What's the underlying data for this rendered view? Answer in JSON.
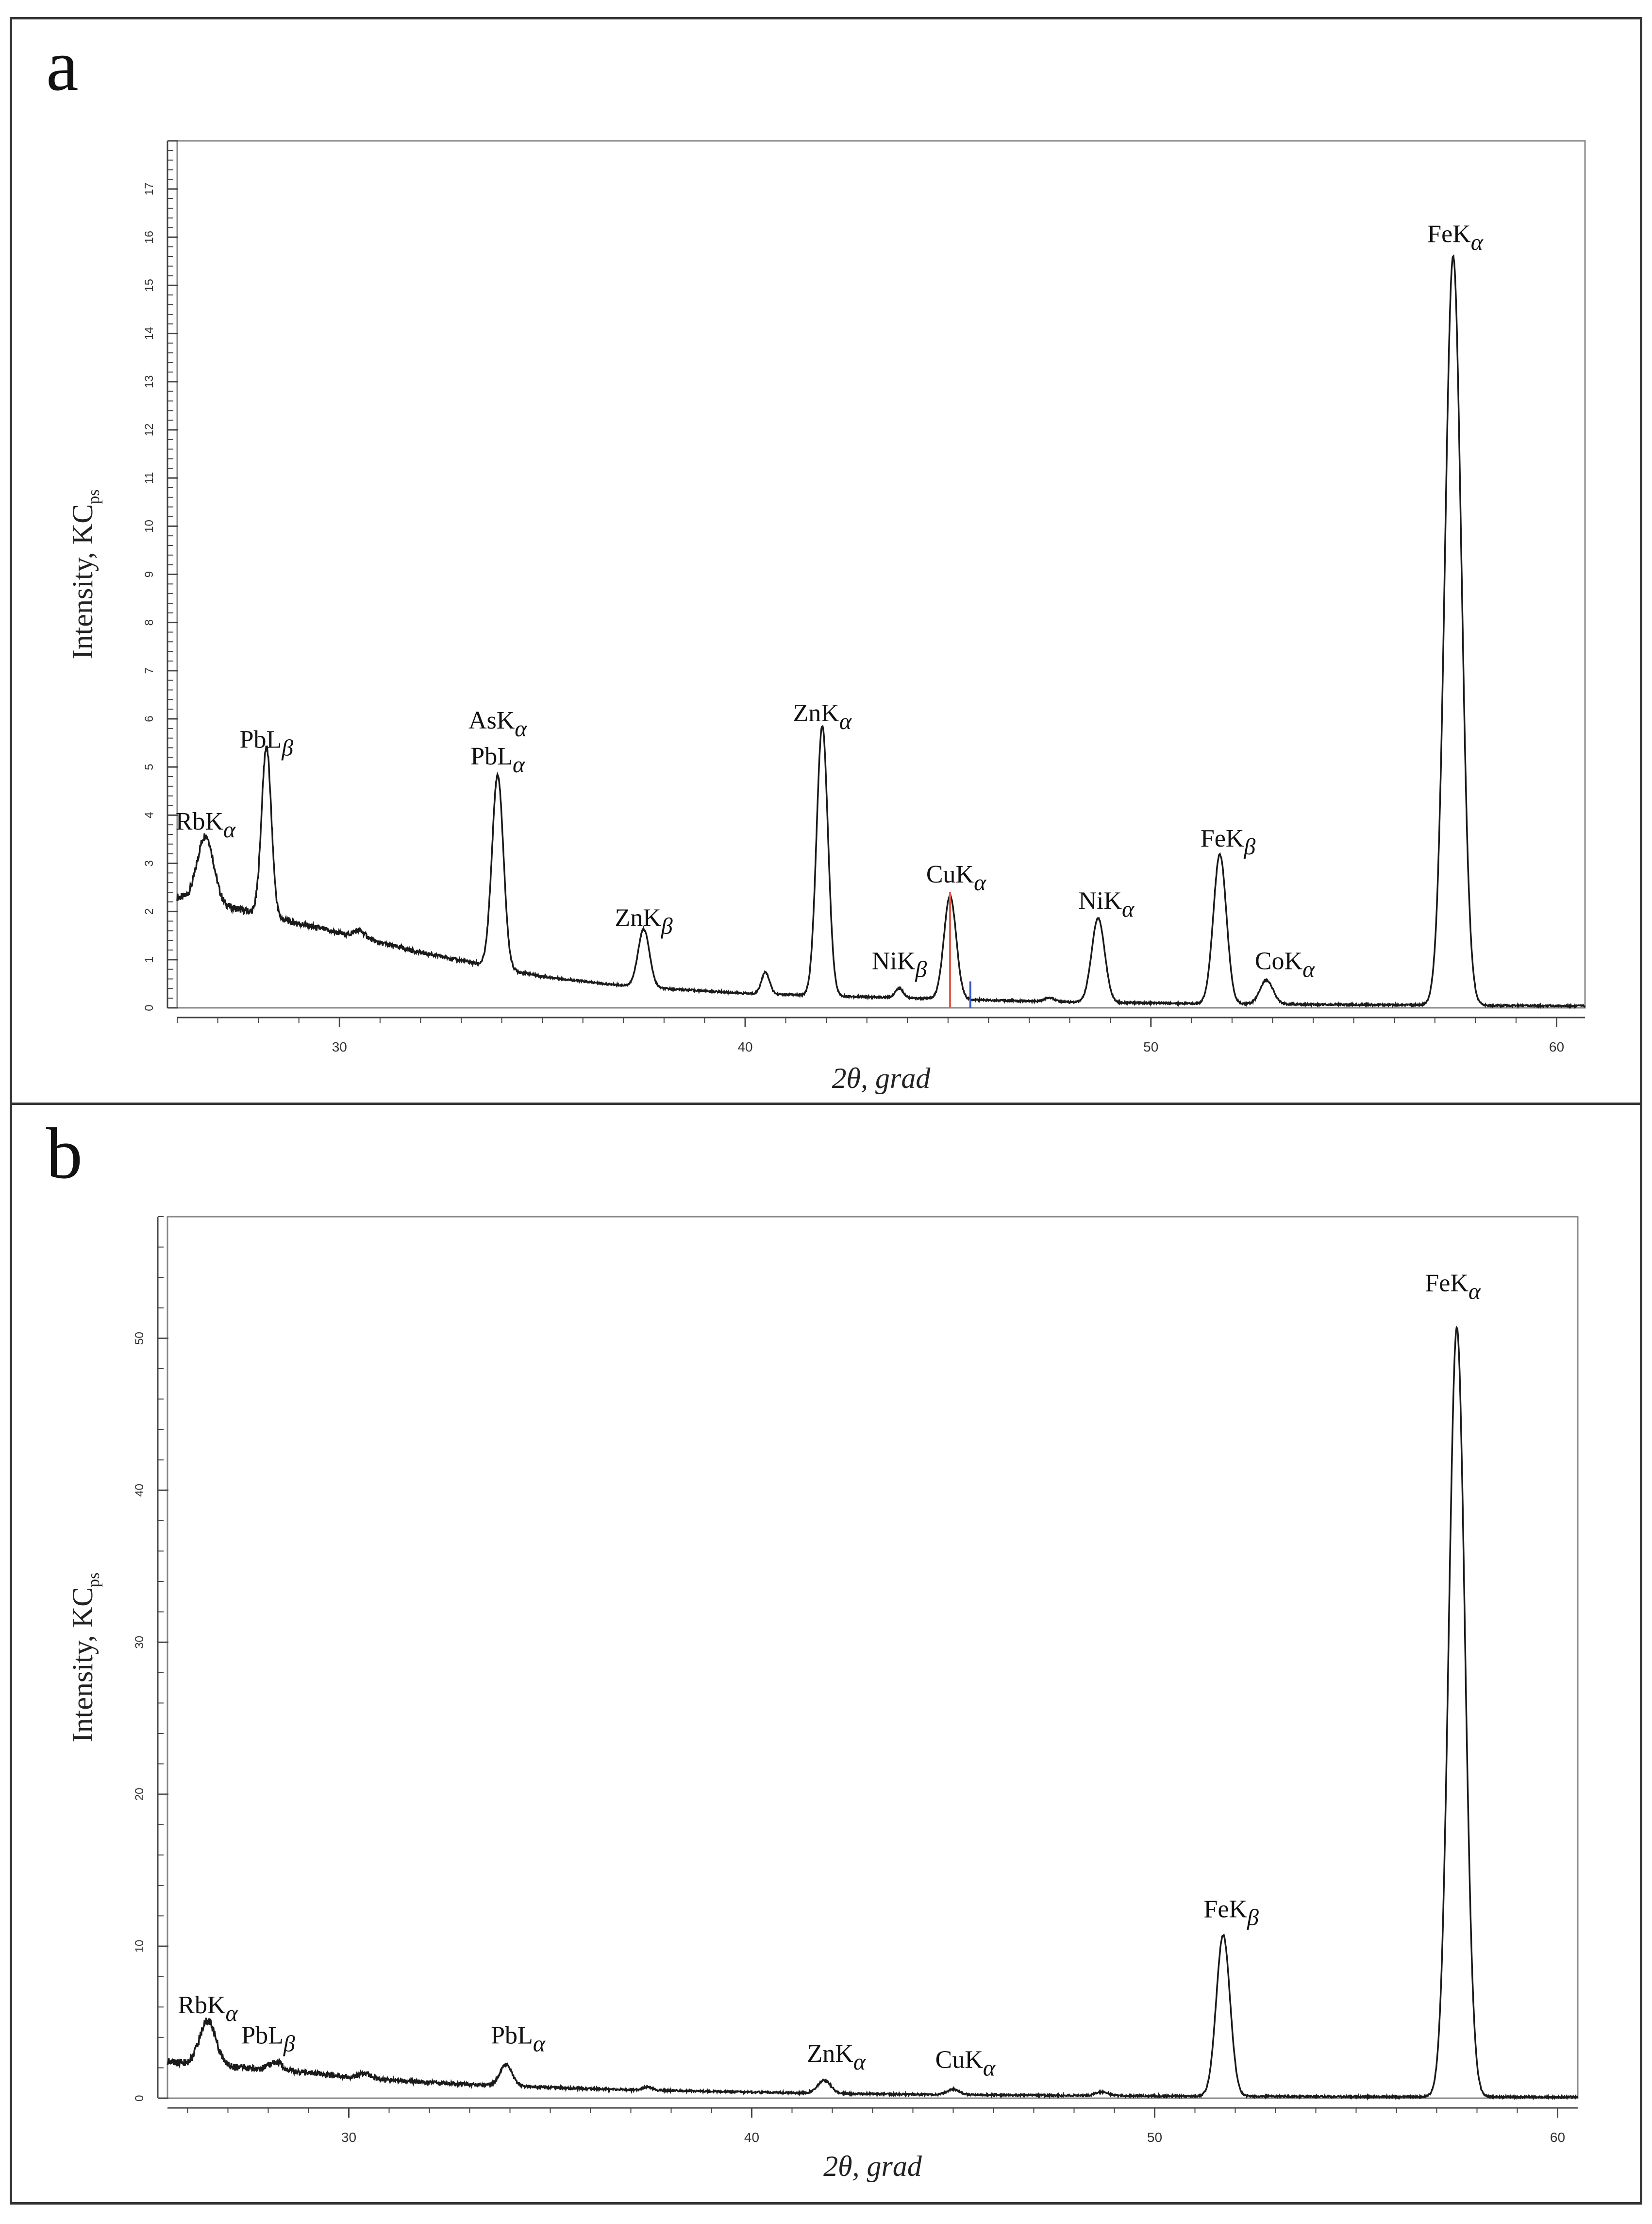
{
  "panels": [
    {
      "letter": "a",
      "chart_data": {
        "type": "line",
        "xlabel": "2θ, grad",
        "ylabel_main": "Intensity, KC",
        "ylabel_sub": "ps",
        "xlim": [
          26,
          60.7
        ],
        "ylim": [
          0,
          18
        ],
        "x_ticks": [
          30,
          40,
          50,
          60
        ],
        "y_ticks": [
          0,
          1,
          2,
          3,
          4,
          5,
          6,
          7,
          8,
          9,
          10,
          11,
          12,
          13,
          14,
          15,
          16,
          17
        ],
        "grid": false,
        "series": [
          {
            "baseline": [
              [
                26,
                2.3
              ],
              [
                27.5,
                2.05
              ],
              [
                29,
                1.75
              ],
              [
                30.5,
                1.45
              ],
              [
                32,
                1.15
              ],
              [
                33.5,
                0.9
              ],
              [
                35,
                0.65
              ],
              [
                36.5,
                0.5
              ],
              [
                38,
                0.4
              ],
              [
                40,
                0.3
              ],
              [
                42,
                0.25
              ],
              [
                45,
                0.18
              ],
              [
                48,
                0.12
              ],
              [
                52,
                0.08
              ],
              [
                56,
                0.06
              ],
              [
                60,
                0.04
              ],
              [
                60.7,
                0.04
              ]
            ],
            "peaks": [
              {
                "x": 26.7,
                "height": 1.4,
                "width": 0.2
              },
              {
                "x": 28.2,
                "height": 3.5,
                "width": 0.12
              },
              {
                "x": 30.5,
                "height": 0.15,
                "width": 0.15
              },
              {
                "x": 33.9,
                "height": 4.0,
                "width": 0.14
              },
              {
                "x": 37.5,
                "height": 1.2,
                "width": 0.14
              },
              {
                "x": 40.5,
                "height": 0.45,
                "width": 0.1
              },
              {
                "x": 41.9,
                "height": 5.6,
                "width": 0.14
              },
              {
                "x": 43.8,
                "height": 0.2,
                "width": 0.1
              },
              {
                "x": 45.05,
                "height": 2.15,
                "width": 0.15
              },
              {
                "x": 47.5,
                "height": 0.08,
                "width": 0.12
              },
              {
                "x": 48.7,
                "height": 1.75,
                "width": 0.16
              },
              {
                "x": 51.7,
                "height": 3.1,
                "width": 0.16
              },
              {
                "x": 52.85,
                "height": 0.5,
                "width": 0.16
              },
              {
                "x": 57.45,
                "height": 15.55,
                "width": 0.2
              }
            ]
          }
        ],
        "markers": [
          {
            "x": 45.05,
            "y": 2.4,
            "color": "#e25c4a"
          },
          {
            "x": 45.55,
            "y": 0.55,
            "color": "#3355cc"
          }
        ],
        "annotations": [
          {
            "base": "RbK",
            "sub": "α",
            "x": 26.7,
            "y": 3.7
          },
          {
            "base": "PbL",
            "sub": "β",
            "x": 28.2,
            "y": 5.4
          },
          {
            "base": "AsK",
            "sub": "α",
            "x": 33.9,
            "y": 5.8
          },
          {
            "base": "PbL",
            "sub": "α",
            "x": 33.9,
            "y": 5.05
          },
          {
            "base": "ZnK",
            "sub": "β",
            "x": 37.5,
            "y": 1.7
          },
          {
            "base": "ZnK",
            "sub": "α",
            "x": 41.9,
            "y": 5.95
          },
          {
            "base": "NiK",
            "sub": "β",
            "x": 43.8,
            "y": 0.8
          },
          {
            "base": "CuK",
            "sub": "α",
            "x": 45.2,
            "y": 2.6
          },
          {
            "base": "NiK",
            "sub": "α",
            "x": 48.9,
            "y": 2.05
          },
          {
            "base": "FeK",
            "sub": "β",
            "x": 51.9,
            "y": 3.35
          },
          {
            "base": "CoK",
            "sub": "α",
            "x": 53.3,
            "y": 0.8
          },
          {
            "base": "FeK",
            "sub": "α",
            "x": 57.5,
            "y": 15.9
          }
        ]
      }
    },
    {
      "letter": "b",
      "chart_data": {
        "type": "line",
        "xlabel": "2θ, grad",
        "ylabel_main": "Intensity, KC",
        "ylabel_sub": "ps",
        "xlim": [
          25.5,
          60.5
        ],
        "ylim": [
          0,
          58
        ],
        "x_ticks": [
          30,
          40,
          50,
          60
        ],
        "y_ticks": [
          0,
          10,
          20,
          30,
          40,
          50
        ],
        "grid": false,
        "series": [
          {
            "baseline": [
              [
                25.5,
                2.4
              ],
              [
                27,
                2.1
              ],
              [
                28.5,
                1.8
              ],
              [
                30,
                1.4
              ],
              [
                31.5,
                1.1
              ],
              [
                33,
                0.9
              ],
              [
                35,
                0.7
              ],
              [
                37,
                0.55
              ],
              [
                39,
                0.45
              ],
              [
                41,
                0.35
              ],
              [
                44,
                0.25
              ],
              [
                47,
                0.2
              ],
              [
                50,
                0.15
              ],
              [
                55,
                0.1
              ],
              [
                60,
                0.08
              ],
              [
                60.5,
                0.08
              ]
            ],
            "peaks": [
              {
                "x": 26.5,
                "height": 2.9,
                "width": 0.2
              },
              {
                "x": 28.2,
                "height": 0.5,
                "width": 0.15
              },
              {
                "x": 30.4,
                "height": 0.3,
                "width": 0.15
              },
              {
                "x": 33.9,
                "height": 1.4,
                "width": 0.15
              },
              {
                "x": 37.4,
                "height": 0.2,
                "width": 0.12
              },
              {
                "x": 41.8,
                "height": 0.85,
                "width": 0.16
              },
              {
                "x": 45.0,
                "height": 0.35,
                "width": 0.15
              },
              {
                "x": 48.7,
                "height": 0.25,
                "width": 0.15
              },
              {
                "x": 51.7,
                "height": 10.6,
                "width": 0.17
              },
              {
                "x": 57.5,
                "height": 50.6,
                "width": 0.2
              }
            ]
          }
        ],
        "markers": [],
        "annotations": [
          {
            "base": "RbK",
            "sub": "α",
            "x": 26.5,
            "y": 5.6
          },
          {
            "base": "PbL",
            "sub": "β",
            "x": 28.0,
            "y": 3.6
          },
          {
            "base": "PbL",
            "sub": "α",
            "x": 34.2,
            "y": 3.6
          },
          {
            "base": "ZnK",
            "sub": "α",
            "x": 42.1,
            "y": 2.4
          },
          {
            "base": "CuK",
            "sub": "α",
            "x": 45.3,
            "y": 2.0
          },
          {
            "base": "FeK",
            "sub": "β",
            "x": 51.9,
            "y": 11.9
          },
          {
            "base": "FeK",
            "sub": "α",
            "x": 57.4,
            "y": 53.1
          }
        ]
      }
    }
  ],
  "colors": {
    "trace": "#1a1a1a",
    "axis": "#444444",
    "frame": "#333333"
  }
}
